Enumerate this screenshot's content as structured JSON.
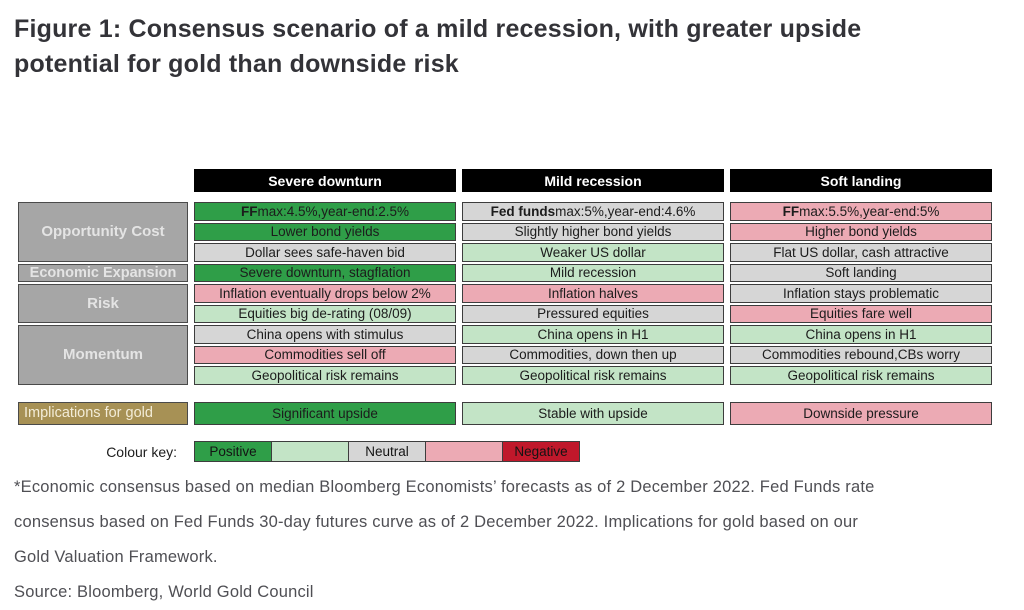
{
  "title": {
    "line1": "Figure 1: Consensus scenario of a mild recession, with greater upside",
    "line2": "potential for gold than downside risk"
  },
  "chart_data": {
    "type": "table",
    "scenarios": [
      "Severe downturn",
      "Mild recession",
      "Soft landing"
    ],
    "row_groups": [
      {
        "label": "Opportunity Cost",
        "rows": 3
      },
      {
        "label": "Economic Expansion",
        "rows": 1
      },
      {
        "label": "Risk",
        "rows": 2
      },
      {
        "label": "Momentum",
        "rows": 3
      }
    ],
    "columns": [
      {
        "scenario": "Severe downturn",
        "cells": [
          {
            "bold": "FF",
            "text": " max:4.5%,year-end:2.5%",
            "tone": "positive"
          },
          {
            "text": "Lower bond yields",
            "tone": "positive"
          },
          {
            "text": "Dollar sees safe-haven bid",
            "tone": "neutral"
          },
          {
            "text": "Severe downturn, stagflation",
            "tone": "positive"
          },
          {
            "text": "Inflation eventually drops below 2%",
            "tone": "mild-negative"
          },
          {
            "text": "Equities big de-rating (08/09)",
            "tone": "mild-positive"
          },
          {
            "text": "China opens with stimulus",
            "tone": "neutral"
          },
          {
            "text": "Commodities sell off",
            "tone": "mild-negative"
          },
          {
            "text": "Geopolitical risk remains",
            "tone": "mild-positive"
          }
        ]
      },
      {
        "scenario": "Mild recession",
        "cells": [
          {
            "bold": "Fed funds",
            "text": " max:5%,year-end:4.6%",
            "tone": "neutral"
          },
          {
            "text": "Slightly higher bond yields",
            "tone": "neutral"
          },
          {
            "text": "Weaker US dollar",
            "tone": "mild-positive"
          },
          {
            "text": "Mild recession",
            "tone": "mild-positive"
          },
          {
            "text": "Inflation halves",
            "tone": "mild-negative"
          },
          {
            "text": "Pressured equities",
            "tone": "neutral"
          },
          {
            "text": "China opens in H1",
            "tone": "mild-positive"
          },
          {
            "text": "Commodities, down then up",
            "tone": "neutral"
          },
          {
            "text": "Geopolitical risk remains",
            "tone": "mild-positive"
          }
        ]
      },
      {
        "scenario": "Soft landing",
        "cells": [
          {
            "bold": "FF",
            "text": " max:5.5%,year-end:5%",
            "tone": "mild-negative"
          },
          {
            "text": "Higher bond yields",
            "tone": "mild-negative"
          },
          {
            "text": "Flat US dollar, cash attractive",
            "tone": "neutral"
          },
          {
            "text": "Soft landing",
            "tone": "neutral"
          },
          {
            "text": "Inflation stays problematic",
            "tone": "neutral"
          },
          {
            "text": "Equities fare well",
            "tone": "mild-negative"
          },
          {
            "text": "China opens in H1",
            "tone": "mild-positive"
          },
          {
            "text": "Commodities rebound,CBs worry",
            "tone": "neutral"
          },
          {
            "text": "Geopolitical risk remains",
            "tone": "mild-positive"
          }
        ]
      }
    ],
    "implications": {
      "label": "Implications for gold",
      "values": [
        {
          "text": "Significant upside",
          "tone": "positive"
        },
        {
          "text": "Stable with upside",
          "tone": "mild-positive"
        },
        {
          "text": "Downside pressure",
          "tone": "mild-negative"
        }
      ]
    },
    "colour_key": {
      "label": "Colour key:",
      "swatches": [
        {
          "label": "Positive",
          "tone": "positive"
        },
        {
          "label": "",
          "tone": "mild-positive"
        },
        {
          "label": "Neutral",
          "tone": "neutral"
        },
        {
          "label": "",
          "tone": "mild-negative"
        },
        {
          "label": "Negative",
          "tone": "negative"
        }
      ]
    },
    "colors": {
      "positive": "#2f9e48",
      "mild_positive": "#c3e4c6",
      "neutral": "#d6d6d6",
      "mild_negative": "#ecaab4",
      "negative": "#c0182b",
      "gold_label": "#a79155",
      "row_label_bg": "#a6a6a6",
      "header_bg": "#000000"
    }
  },
  "footnote_lines": [
    "*Economic consensus based on median Bloomberg Economists’ forecasts as of 2 December 2022. Fed Funds rate",
    "consensus based on Fed Funds 30-day futures curve as of 2 December 2022. Implications for gold based on our",
    "Gold Valuation Framework."
  ],
  "source": "Source: Bloomberg, World Gold Council"
}
